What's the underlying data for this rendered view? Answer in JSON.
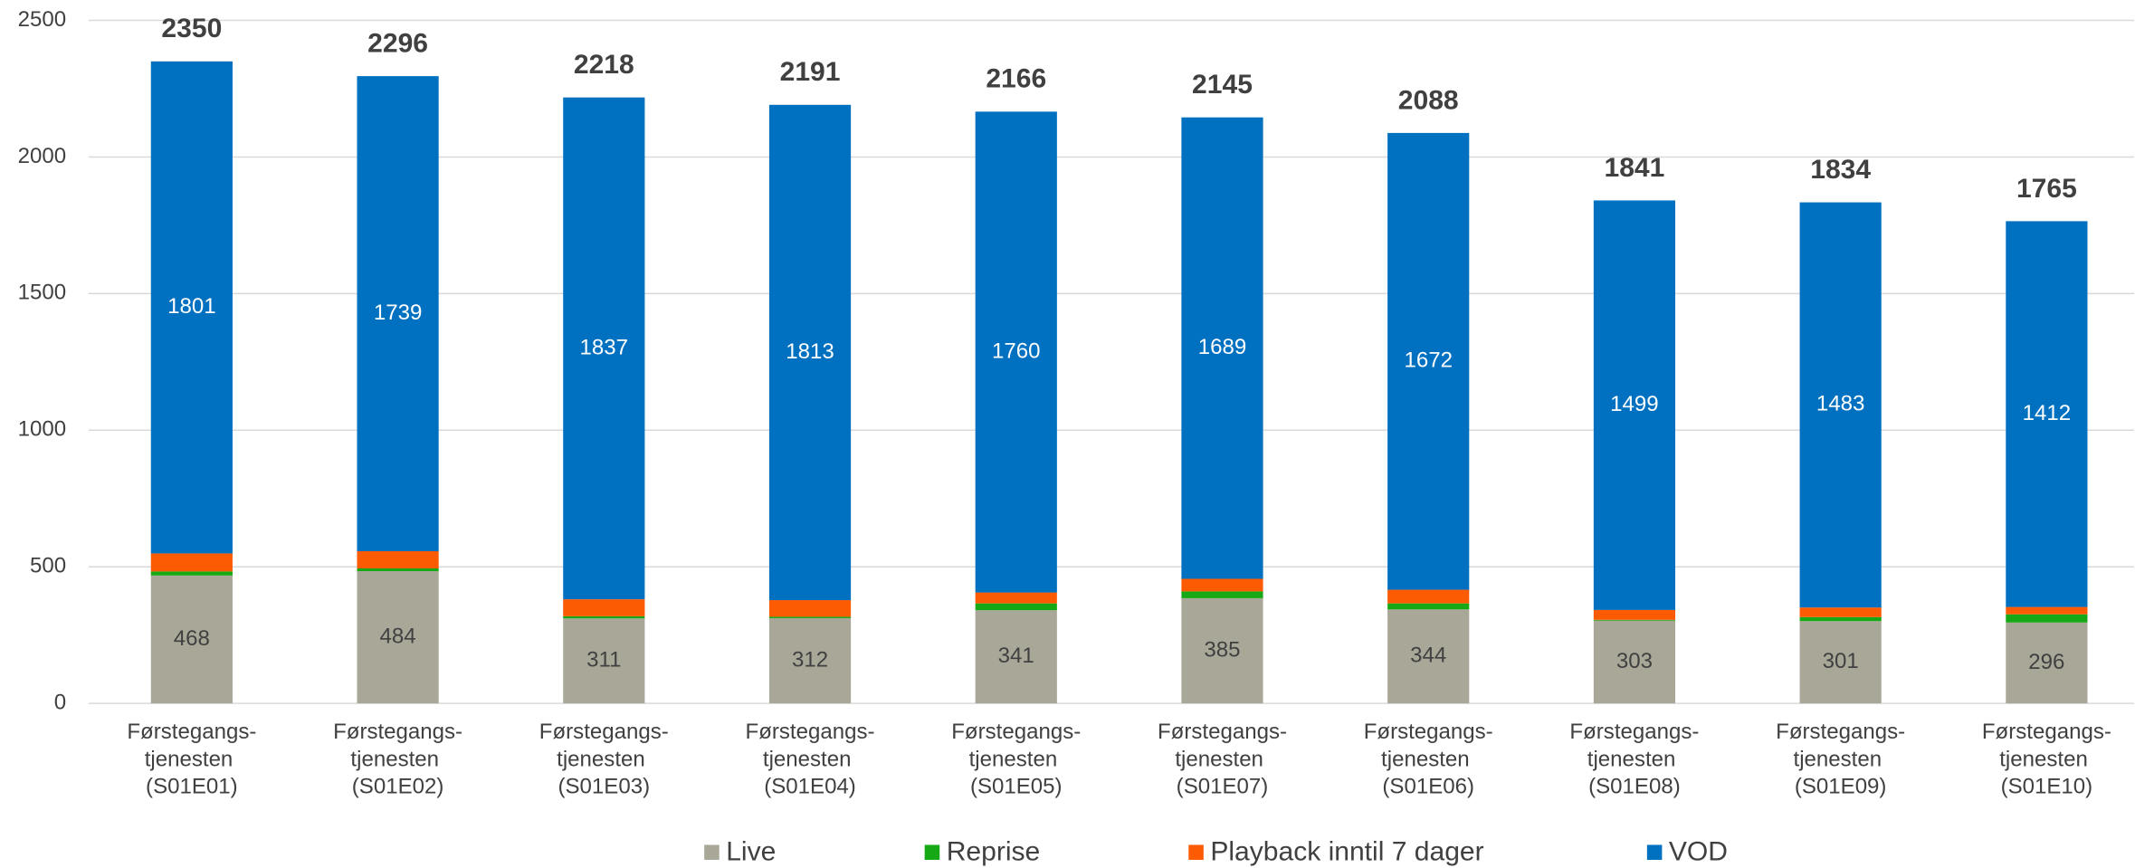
{
  "chart_data": {
    "type": "stacked_bar",
    "categories": [
      "Førstegangs-tjenesten (S01E01)",
      "Førstegangs-tjenesten (S01E02)",
      "Førstegangs-tjenesten (S01E03)",
      "Førstegangs-tjenesten (S01E04)",
      "Førstegangs-tjenesten (S01E05)",
      "Førstegangs-tjenesten (S01E07)",
      "Førstegangs-tjenesten (S01E06)",
      "Førstegangs-tjenesten (S01E08)",
      "Førstegangs-tjenesten (S01E09)",
      "Førstegangs-tjenesten (S01E10)"
    ],
    "series": [
      {
        "name": "Live",
        "color": "#a9a898",
        "values": [
          468,
          484,
          311,
          312,
          341,
          385,
          344,
          303,
          301,
          296
        ],
        "labels": true
      },
      {
        "name": "Reprise",
        "color": "#17a815",
        "values": [
          15,
          10,
          8,
          5,
          25,
          25,
          22,
          3,
          15,
          30
        ]
      },
      {
        "name": "Playback inntil 7 dager",
        "color": "#fd5a04",
        "values": [
          66,
          63,
          62,
          61,
          40,
          46,
          50,
          36,
          35,
          27
        ]
      },
      {
        "name": "VOD",
        "color": "#0070c0",
        "values": [
          1801,
          1739,
          1837,
          1813,
          1760,
          1689,
          1672,
          1499,
          1483,
          1412
        ],
        "labels": true
      }
    ],
    "totals": [
      2350,
      2296,
      2218,
      2191,
      2166,
      2145,
      2088,
      1841,
      1834,
      1765
    ],
    "ylim": [
      0,
      2500
    ],
    "yticks": [
      0,
      500,
      1000,
      1500,
      2000,
      2500
    ],
    "grid": true
  }
}
